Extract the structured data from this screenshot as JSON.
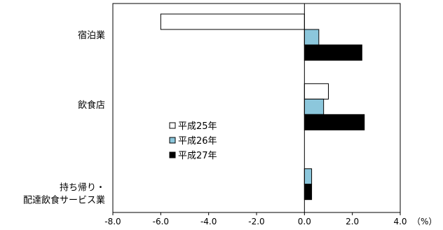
{
  "chart_data": {
    "type": "bar",
    "orientation": "horizontal",
    "categories": [
      [
        "宿泊業"
      ],
      [
        "飲食店"
      ],
      [
        "持ち帰り・",
        "配達飲食サービス業"
      ]
    ],
    "series": [
      {
        "name": "平成25年",
        "color": "#ffffff",
        "values": [
          -6.0,
          1.0,
          0.0
        ]
      },
      {
        "name": "平成26年",
        "color": "#8cc7dc",
        "values": [
          0.6,
          0.8,
          0.3
        ]
      },
      {
        "name": "平成27年",
        "color": "#000000",
        "values": [
          2.4,
          2.5,
          0.3
        ]
      }
    ],
    "xlim": [
      -8.0,
      4.0
    ],
    "xticks": [
      "-8.0",
      "-6.0",
      "-4.0",
      "-2.0",
      "0.0",
      "2.0",
      "4.0"
    ],
    "xunit": "（%）",
    "grid": false,
    "legend_position": "inside-center-left"
  }
}
